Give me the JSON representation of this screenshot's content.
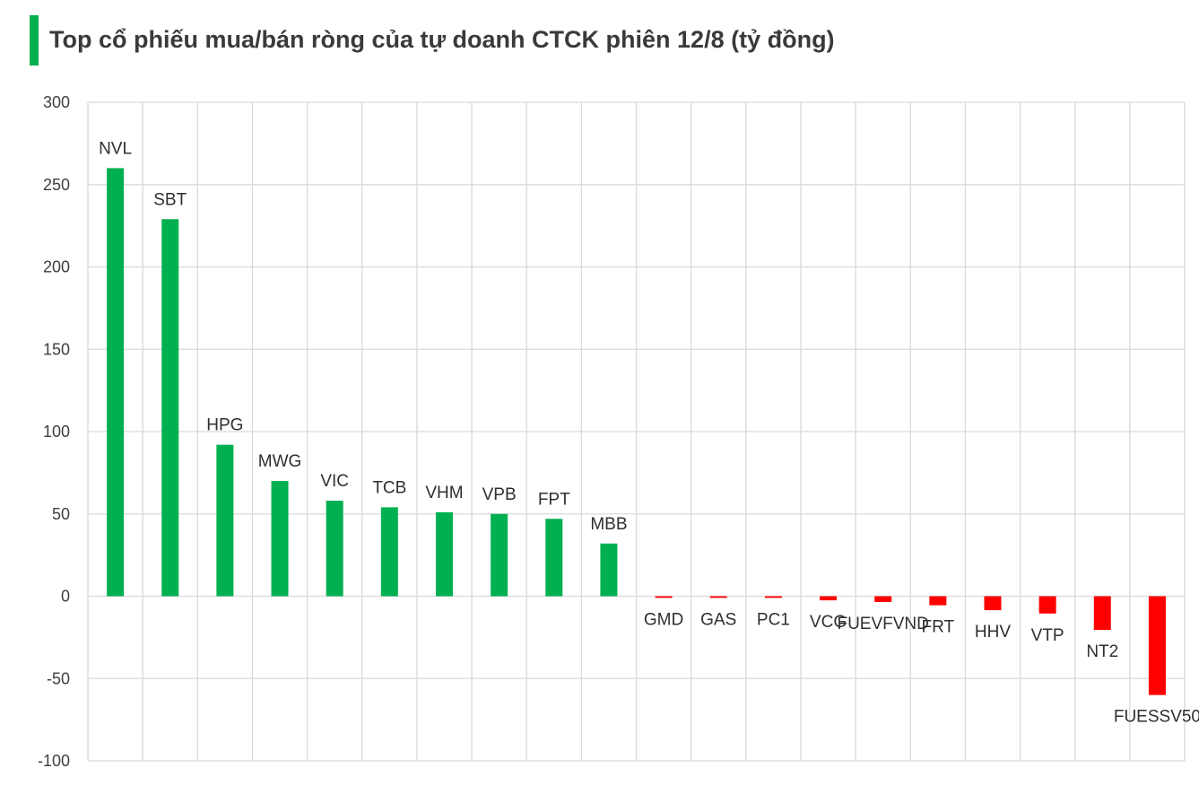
{
  "title": "Top cổ phiếu mua/bán ròng của tự doanh CTCK phiên 12/8 (tỷ đồng)",
  "colors": {
    "positive": "#00b050",
    "negative": "#ff0000",
    "accent_bar": "#00b050",
    "grid": "#d9d9d9",
    "text": "#404040"
  },
  "chart_data": {
    "type": "bar",
    "title": "Top cổ phiếu mua/bán ròng của tự doanh CTCK phiên 12/8 (tỷ đồng)",
    "xlabel": "",
    "ylabel": "",
    "ylim": [
      -100,
      300
    ],
    "yticks": [
      300,
      250,
      200,
      150,
      100,
      50,
      0,
      -50,
      -100
    ],
    "grid": true,
    "legend": "none",
    "categories": [
      "NVL",
      "SBT",
      "HPG",
      "MWG",
      "VIC",
      "TCB",
      "VHM",
      "VPB",
      "FPT",
      "MBB",
      "GMD",
      "GAS",
      "PC1",
      "VCG",
      "FUEVFVND",
      "FRT",
      "HHV",
      "VTP",
      "NT2",
      "FUESSV50"
    ],
    "values": [
      260,
      229,
      92,
      70,
      58,
      54,
      51,
      50,
      47,
      32,
      -1,
      -1,
      -1,
      -2.5,
      -3.5,
      -5.5,
      -8.5,
      -10.5,
      -20.5,
      -60
    ]
  }
}
